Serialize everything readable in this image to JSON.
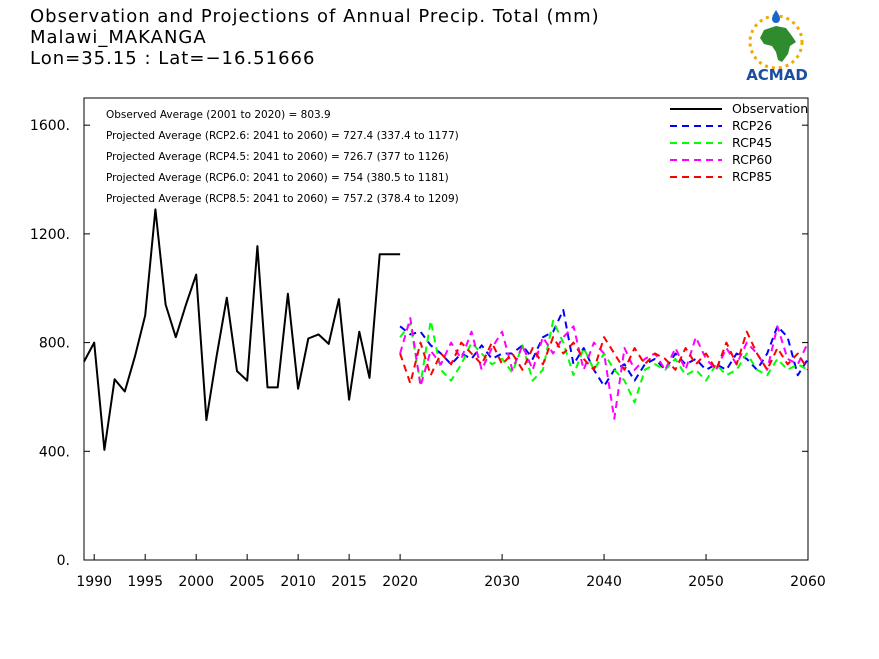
{
  "header": {
    "title": "Observation and Projections of Annual Precip. Total (mm)",
    "station": "Malawi_MAKANGA",
    "coords": "Lon=35.15 : Lat=−16.51666"
  },
  "logo": {
    "text": "ACMAD",
    "icon": "africa-map-logo"
  },
  "chart_data": {
    "type": "line",
    "title": "Observation and Projections of Annual Precip. Total (mm)",
    "xlim": [
      1989,
      2060
    ],
    "ylim": [
      0,
      1700
    ],
    "xticks": [
      1990,
      1995,
      2000,
      2005,
      2010,
      2015,
      2020,
      2030,
      2040,
      2050,
      2060
    ],
    "xtick_labels": [
      "1990",
      "1995",
      "2000",
      "2005",
      "2010",
      "2015",
      "2020",
      "2030",
      "2040",
      "2050",
      "2060"
    ],
    "yticks": [
      0,
      400,
      800,
      1200,
      1600
    ],
    "ytick_labels": [
      "0.",
      "400.",
      "800.",
      "1200.",
      "1600."
    ],
    "legend_position": "top-right",
    "annotations": [
      "Observed Average (2001 to 2020) = 803.9",
      "Projected Average (RCP2.6: 2041 to 2060) = 727.4 (337.4 to 1177)",
      "Projected Average (RCP4.5: 2041 to 2060) = 726.7 (377 to 1126)",
      "Projected Average (RCP6.0: 2041 to 2060) = 754 (380.5 to 1181)",
      "Projected Average (RCP8.5: 2041 to 2060) = 757.2 (378.4 to 1209)"
    ],
    "series": [
      {
        "name": "Observation",
        "color": "#000000",
        "dash": "solid",
        "x": [
          1989,
          1990,
          1991,
          1992,
          1993,
          1994,
          1995,
          1996,
          1997,
          1998,
          1999,
          2000,
          2001,
          2002,
          2003,
          2004,
          2005,
          2006,
          2007,
          2008,
          2009,
          2010,
          2011,
          2012,
          2013,
          2014,
          2015,
          2016,
          2017,
          2018,
          2019,
          2020
        ],
        "values": [
          730,
          800,
          405,
          665,
          620,
          750,
          900,
          1290,
          940,
          820,
          940,
          1050,
          515,
          750,
          965,
          695,
          660,
          1155,
          635,
          635,
          980,
          630,
          815,
          830,
          795,
          960,
          590,
          840,
          670,
          1125,
          1125,
          1125
        ]
      },
      {
        "name": "RCP26",
        "color": "#0000ff",
        "dash": "dashed",
        "x": [
          2020,
          2021,
          2022,
          2023,
          2024,
          2025,
          2026,
          2027,
          2028,
          2029,
          2030,
          2031,
          2032,
          2033,
          2034,
          2035,
          2036,
          2037,
          2038,
          2039,
          2040,
          2041,
          2042,
          2043,
          2044,
          2045,
          2046,
          2047,
          2048,
          2049,
          2050,
          2051,
          2052,
          2053,
          2054,
          2055,
          2056,
          2057,
          2058,
          2059,
          2060
        ],
        "values": [
          860,
          830,
          840,
          790,
          760,
          720,
          760,
          740,
          790,
          740,
          760,
          760,
          790,
          740,
          820,
          840,
          920,
          720,
          780,
          700,
          640,
          700,
          720,
          660,
          720,
          740,
          700,
          760,
          720,
          740,
          700,
          720,
          700,
          760,
          740,
          700,
          760,
          860,
          820,
          680,
          740
        ]
      },
      {
        "name": "RCP45",
        "color": "#00ff00",
        "dash": "dashed",
        "x": [
          2020,
          2021,
          2022,
          2023,
          2024,
          2025,
          2026,
          2027,
          2028,
          2029,
          2030,
          2031,
          2032,
          2033,
          2034,
          2035,
          2036,
          2037,
          2038,
          2039,
          2040,
          2041,
          2042,
          2043,
          2044,
          2045,
          2046,
          2047,
          2048,
          2049,
          2050,
          2051,
          2052,
          2053,
          2054,
          2055,
          2056,
          2057,
          2058,
          2059,
          2060
        ],
        "values": [
          820,
          870,
          650,
          880,
          700,
          660,
          720,
          800,
          760,
          720,
          740,
          690,
          790,
          660,
          700,
          880,
          800,
          680,
          780,
          700,
          760,
          700,
          660,
          580,
          700,
          720,
          700,
          740,
          680,
          700,
          660,
          720,
          680,
          700,
          760,
          700,
          680,
          740,
          700,
          720,
          700
        ]
      },
      {
        "name": "RCP60",
        "color": "#ff00ff",
        "dash": "dashed",
        "x": [
          2020,
          2021,
          2022,
          2023,
          2024,
          2025,
          2026,
          2027,
          2028,
          2029,
          2030,
          2031,
          2032,
          2033,
          2034,
          2035,
          2036,
          2037,
          2038,
          2039,
          2040,
          2041,
          2042,
          2043,
          2044,
          2045,
          2046,
          2047,
          2048,
          2049,
          2050,
          2051,
          2052,
          2053,
          2054,
          2055,
          2056,
          2057,
          2058,
          2059,
          2060
        ],
        "values": [
          760,
          890,
          640,
          770,
          720,
          800,
          740,
          840,
          700,
          780,
          840,
          700,
          790,
          700,
          820,
          760,
          820,
          860,
          700,
          800,
          760,
          520,
          780,
          700,
          740,
          760,
          700,
          780,
          700,
          820,
          740,
          700,
          780,
          720,
          800,
          760,
          700,
          860,
          740,
          720,
          800
        ]
      },
      {
        "name": "RCP85",
        "color": "#ff0000",
        "dash": "dashed",
        "x": [
          2020,
          2021,
          2022,
          2023,
          2024,
          2025,
          2026,
          2027,
          2028,
          2029,
          2030,
          2031,
          2032,
          2033,
          2034,
          2035,
          2036,
          2037,
          2038,
          2039,
          2040,
          2041,
          2042,
          2043,
          2044,
          2045,
          2046,
          2047,
          2048,
          2049,
          2050,
          2051,
          2052,
          2053,
          2054,
          2055,
          2056,
          2057,
          2058,
          2059,
          2060
        ],
        "values": [
          760,
          650,
          800,
          680,
          760,
          720,
          800,
          760,
          720,
          800,
          720,
          760,
          700,
          780,
          720,
          820,
          760,
          800,
          740,
          700,
          820,
          760,
          700,
          780,
          720,
          760,
          740,
          700,
          780,
          720,
          760,
          700,
          800,
          720,
          840,
          760,
          700,
          780,
          720,
          760,
          700
        ]
      }
    ]
  }
}
